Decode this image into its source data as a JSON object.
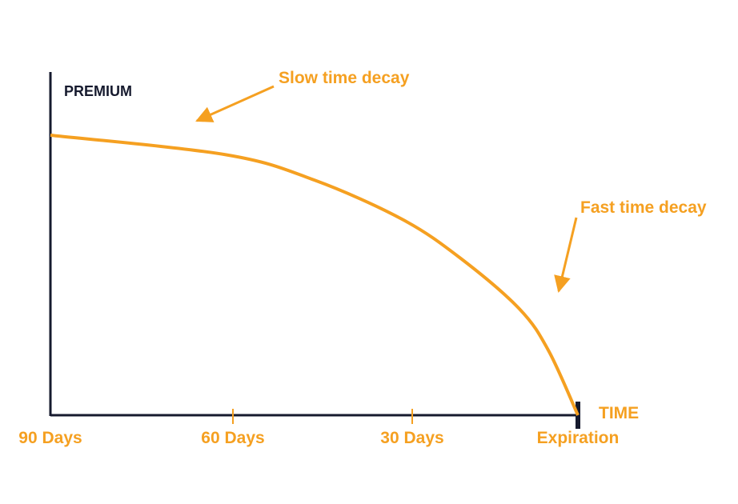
{
  "chart_data": {
    "type": "line",
    "ylabel": "PREMIUM",
    "xlabel": "TIME",
    "x_ticks": [
      "90 Days",
      "60 Days",
      "30 Days",
      "Expiration"
    ],
    "series": [
      {
        "x": [
          90,
          60,
          45,
          30,
          20,
          10,
          5,
          0
        ],
        "y": [
          1.0,
          0.93,
          0.84,
          0.7,
          0.56,
          0.38,
          0.23,
          0.0
        ]
      }
    ],
    "annotations": [
      {
        "text": "Slow time decay"
      },
      {
        "text": "Fast time decay"
      }
    ],
    "grid": false,
    "legend": false
  },
  "colors": {
    "accent": "#F5A021",
    "axis": "#161A2E",
    "text_dark": "#161A2E"
  }
}
